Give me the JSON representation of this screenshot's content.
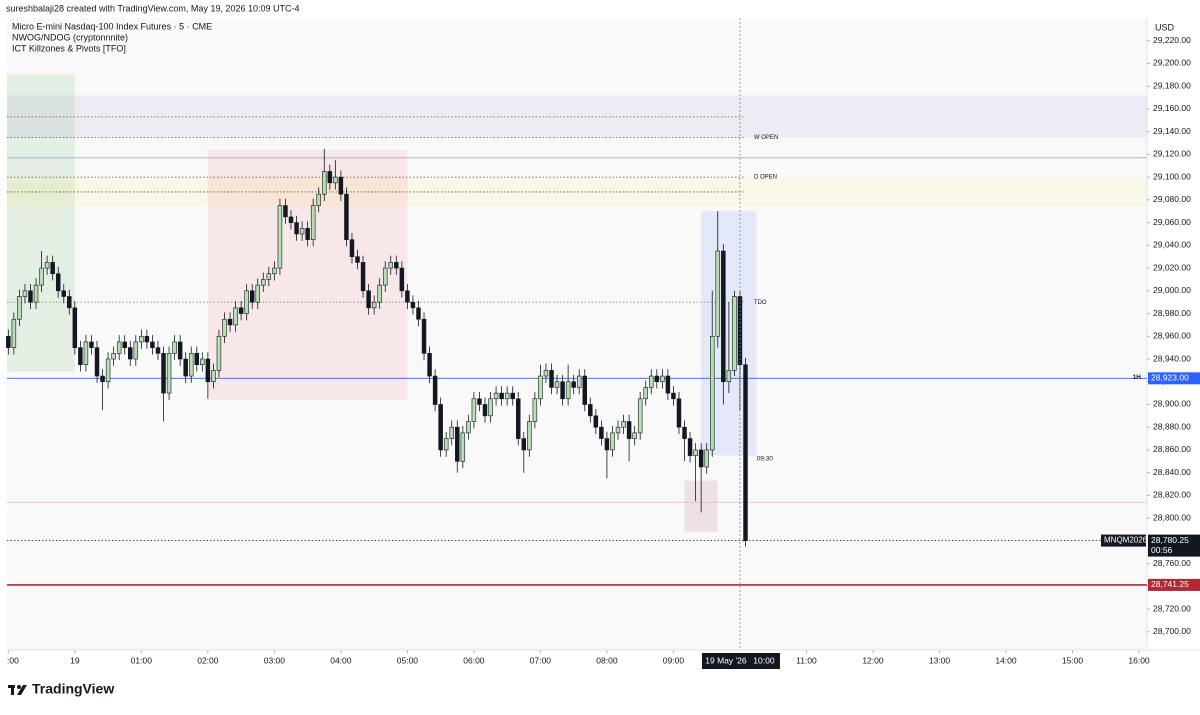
{
  "chart_data": {
    "type": "candlestick",
    "attribution": "sureshbalaji28 created with TradingView.com, May 19, 2026 10:09 UTC-4",
    "title": "Micro E-mini Nasdaq-100 Index Futures · 5 · CME",
    "indicators": [
      "NWOG/NDOG (cryptonnnite)",
      "ICT Killzones & Pivots [TFO]"
    ],
    "brand": "TradingView",
    "currency": "USD",
    "up_color": "#b7dfb2",
    "down_color": "#131722",
    "outline_color": "#131722",
    "x": [
      "2026-05-18T23:00",
      "2026-05-18T23:05",
      "2026-05-18T23:10",
      "2026-05-18T23:15",
      "2026-05-18T23:20",
      "2026-05-18T23:25",
      "2026-05-18T23:30",
      "2026-05-18T23:35",
      "2026-05-18T23:40",
      "2026-05-18T23:45",
      "2026-05-18T23:50",
      "2026-05-18T23:55",
      "2026-05-19T00:00",
      "2026-05-19T00:05",
      "2026-05-19T00:10",
      "2026-05-19T00:15",
      "2026-05-19T00:20",
      "2026-05-19T00:25",
      "2026-05-19T00:30",
      "2026-05-19T00:35",
      "2026-05-19T00:40",
      "2026-05-19T00:45",
      "2026-05-19T00:50",
      "2026-05-19T00:55",
      "2026-05-19T01:00",
      "2026-05-19T01:05",
      "2026-05-19T01:10",
      "2026-05-19T01:15",
      "2026-05-19T01:20",
      "2026-05-19T01:25",
      "2026-05-19T01:30",
      "2026-05-19T01:35",
      "2026-05-19T01:40",
      "2026-05-19T01:45",
      "2026-05-19T01:50",
      "2026-05-19T01:55",
      "2026-05-19T02:00",
      "2026-05-19T02:05",
      "2026-05-19T02:10",
      "2026-05-19T02:15",
      "2026-05-19T02:20",
      "2026-05-19T02:25",
      "2026-05-19T02:30",
      "2026-05-19T02:35",
      "2026-05-19T02:40",
      "2026-05-19T02:45",
      "2026-05-19T02:50",
      "2026-05-19T02:55",
      "2026-05-19T03:00",
      "2026-05-19T03:05",
      "2026-05-19T03:10",
      "2026-05-19T03:15",
      "2026-05-19T03:20",
      "2026-05-19T03:25",
      "2026-05-19T03:30",
      "2026-05-19T03:35",
      "2026-05-19T03:40",
      "2026-05-19T03:45",
      "2026-05-19T03:50",
      "2026-05-19T03:55",
      "2026-05-19T04:00",
      "2026-05-19T04:05",
      "2026-05-19T04:10",
      "2026-05-19T04:15",
      "2026-05-19T04:20",
      "2026-05-19T04:25",
      "2026-05-19T04:30",
      "2026-05-19T04:35",
      "2026-05-19T04:40",
      "2026-05-19T04:45",
      "2026-05-19T04:50",
      "2026-05-19T04:55",
      "2026-05-19T05:00",
      "2026-05-19T05:05",
      "2026-05-19T05:10",
      "2026-05-19T05:15",
      "2026-05-19T05:20",
      "2026-05-19T05:25",
      "2026-05-19T05:30",
      "2026-05-19T05:35",
      "2026-05-19T05:40",
      "2026-05-19T05:45",
      "2026-05-19T05:50",
      "2026-05-19T05:55",
      "2026-05-19T06:00",
      "2026-05-19T06:05",
      "2026-05-19T06:10",
      "2026-05-19T06:15",
      "2026-05-19T06:20",
      "2026-05-19T06:25",
      "2026-05-19T06:30",
      "2026-05-19T06:35",
      "2026-05-19T06:40",
      "2026-05-19T06:45",
      "2026-05-19T06:50",
      "2026-05-19T06:55",
      "2026-05-19T07:00",
      "2026-05-19T07:05",
      "2026-05-19T07:10",
      "2026-05-19T07:15",
      "2026-05-19T07:20",
      "2026-05-19T07:25",
      "2026-05-19T07:30",
      "2026-05-19T07:35",
      "2026-05-19T07:40",
      "2026-05-19T07:45",
      "2026-05-19T07:50",
      "2026-05-19T07:55",
      "2026-05-19T08:00",
      "2026-05-19T08:05",
      "2026-05-19T08:10",
      "2026-05-19T08:15",
      "2026-05-19T08:20",
      "2026-05-19T08:25",
      "2026-05-19T08:30",
      "2026-05-19T08:35",
      "2026-05-19T08:40",
      "2026-05-19T08:45",
      "2026-05-19T08:50",
      "2026-05-19T08:55",
      "2026-05-19T09:00",
      "2026-05-19T09:05",
      "2026-05-19T09:10",
      "2026-05-19T09:15",
      "2026-05-19T09:20",
      "2026-05-19T09:25",
      "2026-05-19T09:30",
      "2026-05-19T09:35",
      "2026-05-19T09:40",
      "2026-05-19T09:45",
      "2026-05-19T09:50",
      "2026-05-19T09:55",
      "2026-05-19T10:00",
      "2026-05-19T10:05"
    ],
    "open": [
      28960,
      28950,
      28975,
      28995,
      29000,
      28990,
      29005,
      29020,
      29025,
      29015,
      29000,
      28995,
      28985,
      28950,
      28935,
      28955,
      28950,
      28925,
      28920,
      28940,
      28945,
      28955,
      28950,
      28940,
      28955,
      28960,
      28955,
      28950,
      28945,
      28910,
      28945,
      28955,
      28940,
      28925,
      28945,
      28935,
      28940,
      28920,
      28930,
      28960,
      28975,
      28970,
      28985,
      28980,
      29000,
      28990,
      29005,
      29010,
      29015,
      29020,
      29075,
      29065,
      29060,
      29050,
      29055,
      29045,
      29075,
      29085,
      29105,
      29095,
      29100,
      29085,
      29045,
      29030,
      29025,
      29000,
      28985,
      28990,
      29005,
      29020,
      29025,
      29020,
      29000,
      28990,
      28985,
      28975,
      28945,
      28925,
      28900,
      28860,
      28870,
      28880,
      28850,
      28875,
      28885,
      28905,
      28900,
      28890,
      28905,
      28910,
      28905,
      28910,
      28905,
      28870,
      28860,
      28885,
      28905,
      28925,
      28930,
      28915,
      28920,
      28905,
      28920,
      28915,
      28925,
      28900,
      28890,
      28880,
      28870,
      28860,
      28875,
      28880,
      28885,
      28870,
      28875,
      28905,
      28915,
      28925,
      28920,
      28925,
      28910,
      28905,
      28880,
      28870,
      28855,
      28860,
      28845,
      28860,
      28960,
      29035,
      28920,
      28930,
      28995,
      28935
    ],
    "high": [
      28966,
      28981,
      29001,
      29006,
      29006,
      29011,
      29035,
      29031,
      29031,
      29021,
      29006,
      29001,
      28991,
      28956,
      28961,
      28961,
      28956,
      28931,
      28946,
      28951,
      28961,
      28961,
      28956,
      28961,
      28966,
      28966,
      28961,
      28956,
      28951,
      28951,
      28961,
      28961,
      28946,
      28951,
      28951,
      28946,
      28946,
      28936,
      28966,
      28981,
      28981,
      28991,
      28991,
      29006,
      29006,
      29011,
      29016,
      29021,
      29026,
      29081,
      29081,
      29071,
      29066,
      29061,
      29061,
      29081,
      29091,
      29125,
      29111,
      29115,
      29106,
      29091,
      29051,
      29036,
      29031,
      29006,
      28996,
      29011,
      29026,
      29031,
      29031,
      29026,
      29006,
      28996,
      28991,
      28981,
      28951,
      28931,
      28906,
      28876,
      28886,
      28886,
      28881,
      28891,
      28911,
      28911,
      28906,
      28911,
      28916,
      28916,
      28916,
      28916,
      28911,
      28876,
      28891,
      28911,
      28935,
      28936,
      28936,
      28926,
      28926,
      28935,
      28926,
      28931,
      28931,
      28906,
      28896,
      28886,
      28876,
      28881,
      28886,
      28891,
      28891,
      28881,
      28911,
      28921,
      28931,
      28931,
      28931,
      28931,
      28916,
      28911,
      28886,
      28876,
      28866,
      28866,
      28866,
      29000,
      29070,
      29041,
      28990,
      29000,
      29000,
      28941
    ],
    "low": [
      28944,
      28944,
      28969,
      28989,
      28984,
      28984,
      28999,
      29014,
      29009,
      28994,
      28989,
      28979,
      28944,
      28929,
      28929,
      28944,
      28919,
      28895,
      28914,
      28934,
      28939,
      28944,
      28934,
      28934,
      28949,
      28949,
      28944,
      28939,
      28885,
      28904,
      28939,
      28934,
      28919,
      28919,
      28929,
      28929,
      28905,
      28914,
      28924,
      28954,
      28964,
      28964,
      28974,
      28974,
      28984,
      28984,
      28999,
      29004,
      29009,
      29014,
      29059,
      29054,
      29044,
      29044,
      29039,
      29039,
      29069,
      29079,
      29089,
      29089,
      29079,
      29039,
      29024,
      29019,
      28994,
      28979,
      28979,
      28984,
      28999,
      29014,
      29014,
      28994,
      28984,
      28979,
      28969,
      28939,
      28919,
      28894,
      28854,
      28854,
      28864,
      28840,
      28844,
      28869,
      28879,
      28894,
      28884,
      28884,
      28899,
      28899,
      28899,
      28899,
      28864,
      28840,
      28854,
      28879,
      28899,
      28919,
      28909,
      28909,
      28899,
      28899,
      28909,
      28909,
      28894,
      28884,
      28874,
      28864,
      28835,
      28854,
      28869,
      28874,
      28850,
      28864,
      28869,
      28899,
      28909,
      28914,
      28914,
      28904,
      28899,
      28874,
      28850,
      28849,
      28815,
      28805,
      28839,
      28854,
      28950,
      28900,
      28910,
      28925,
      28895,
      28775
    ],
    "close": [
      28950,
      28975,
      28995,
      29000,
      28990,
      29005,
      29020,
      29025,
      29015,
      29000,
      28995,
      28985,
      28950,
      28935,
      28955,
      28950,
      28925,
      28920,
      28940,
      28945,
      28955,
      28950,
      28940,
      28955,
      28960,
      28955,
      28950,
      28945,
      28910,
      28945,
      28955,
      28940,
      28925,
      28945,
      28935,
      28940,
      28920,
      28930,
      28960,
      28975,
      28970,
      28985,
      28980,
      29000,
      28990,
      29005,
      29010,
      29015,
      29020,
      29075,
      29065,
      29060,
      29050,
      29055,
      29045,
      29075,
      29085,
      29105,
      29095,
      29100,
      29085,
      29045,
      29030,
      29025,
      29000,
      28985,
      28990,
      29005,
      29020,
      29025,
      29020,
      29000,
      28990,
      28985,
      28975,
      28945,
      28925,
      28900,
      28860,
      28870,
      28880,
      28850,
      28875,
      28885,
      28905,
      28900,
      28890,
      28905,
      28910,
      28905,
      28910,
      28905,
      28870,
      28860,
      28885,
      28905,
      28925,
      28930,
      28915,
      28920,
      28905,
      28920,
      28915,
      28925,
      28900,
      28890,
      28880,
      28870,
      28860,
      28875,
      28880,
      28885,
      28870,
      28875,
      28905,
      28915,
      28925,
      28920,
      28925,
      28910,
      28905,
      28880,
      28870,
      28855,
      28860,
      28845,
      28860,
      28960,
      29035,
      28920,
      28930,
      28995,
      28935,
      28780.25
    ],
    "xlim": [
      "2026-05-18T22:58:48",
      "2026-05-19T16:07:12"
    ],
    "xticks": [
      {
        "value": "2026-05-18T23:00",
        "label": ":00"
      },
      {
        "value": "2026-05-19T00:00",
        "label": "19"
      },
      {
        "value": "2026-05-19T01:00",
        "label": "01:00"
      },
      {
        "value": "2026-05-19T02:00",
        "label": "02:00"
      },
      {
        "value": "2026-05-19T03:00",
        "label": "03:00"
      },
      {
        "value": "2026-05-19T04:00",
        "label": "04:00"
      },
      {
        "value": "2026-05-19T05:00",
        "label": "05:00"
      },
      {
        "value": "2026-05-19T06:00",
        "label": "06:00"
      },
      {
        "value": "2026-05-19T07:00",
        "label": "07:00"
      },
      {
        "value": "2026-05-19T08:00",
        "label": "08:00"
      },
      {
        "value": "2026-05-19T09:00",
        "label": "09:00"
      },
      {
        "value": "2026-05-19T11:00",
        "label": "11:00"
      },
      {
        "value": "2026-05-19T12:00",
        "label": "12:00"
      },
      {
        "value": "2026-05-19T13:00",
        "label": "13:00"
      },
      {
        "value": "2026-05-19T14:00",
        "label": "14:00"
      },
      {
        "value": "2026-05-19T15:00",
        "label": "15:00"
      },
      {
        "value": "2026-05-19T16:00",
        "label": "16:00"
      }
    ],
    "crosshair": {
      "value": "2026-05-19T10:00",
      "date": "19 May '26",
      "time": "10:00"
    },
    "ylim": [
      28684,
      29240
    ],
    "yticks": [
      {
        "value": 28700,
        "label": "28,700.00"
      },
      {
        "value": 28720,
        "label": "28,720.00"
      },
      {
        "value": 28740,
        "label": "28,740.00"
      },
      {
        "value": 28760,
        "label": "28,760.00"
      },
      {
        "value": 28780,
        "label": "28,780.00"
      },
      {
        "value": 28800,
        "label": "28,800.00"
      },
      {
        "value": 28820,
        "label": "28,820.00"
      },
      {
        "value": 28840,
        "label": "28,840.00"
      },
      {
        "value": 28860,
        "label": "28,860.00"
      },
      {
        "value": 28880,
        "label": "28,880.00"
      },
      {
        "value": 28900,
        "label": "28,900.00"
      },
      {
        "value": 28920,
        "label": "28,920.00"
      },
      {
        "value": 28940,
        "label": "28,940.00"
      },
      {
        "value": 28960,
        "label": "28,960.00"
      },
      {
        "value": 28980,
        "label": "28,980.00"
      },
      {
        "value": 29000,
        "label": "29,000.00"
      },
      {
        "value": 29020,
        "label": "29,020.00"
      },
      {
        "value": 29040,
        "label": "29,040.00"
      },
      {
        "value": 29060,
        "label": "29,060.00"
      },
      {
        "value": 29080,
        "label": "29,080.00"
      },
      {
        "value": 29100,
        "label": "29,100.00"
      },
      {
        "value": 29120,
        "label": "29,120.00"
      },
      {
        "value": 29140,
        "label": "29,140.00"
      },
      {
        "value": 29160,
        "label": "29,160.00"
      },
      {
        "value": 29180,
        "label": "29,180.00"
      },
      {
        "value": 29200,
        "label": "29,200.00"
      },
      {
        "value": 29220,
        "label": "29,220.00"
      }
    ],
    "zones": [
      {
        "x": [
          "2026-05-18T22:58:48",
          "2026-05-19T00:00"
        ],
        "y": [
          28929,
          29190
        ],
        "color": "rgba(76,175,80,0.13)"
      },
      {
        "y": [
          29135,
          29172
        ],
        "color": "rgba(149,117,205,0.10)"
      },
      {
        "y": [
          29075,
          29100
        ],
        "color": "rgba(255,235,59,0.10)"
      },
      {
        "x": [
          "2026-05-19T02:00",
          "2026-05-19T05:00"
        ],
        "y": [
          28904,
          29124
        ],
        "color": "rgba(242,54,69,0.09)"
      },
      {
        "x": [
          "2026-05-19T09:25",
          "2026-05-19T10:15"
        ],
        "y": [
          28855,
          29070
        ],
        "color": "rgba(41,98,255,0.10)",
        "label": "09:30"
      },
      {
        "x": [
          "2026-05-19T09:10",
          "2026-05-19T09:40"
        ],
        "y": [
          28788,
          28833
        ],
        "color": "rgba(136,14,79,0.10)"
      }
    ],
    "levels": [
      {
        "value": 29153,
        "style": "dotted",
        "color": "#555555"
      },
      {
        "name": "W OPEN",
        "value": 29135,
        "style": "dotted",
        "color": "#555555"
      },
      {
        "value": 29117,
        "style": "solid",
        "color": "#9fa8da"
      },
      {
        "name": "D OPEN",
        "value": 29100,
        "style": "dotted",
        "color": "#555555"
      },
      {
        "value": 29087,
        "style": "dotted",
        "color": "#555555"
      },
      {
        "name": "TDO",
        "value": 28990,
        "style": "dotted",
        "color": "#888888"
      },
      {
        "name": "1H",
        "value": 28923,
        "label": "28,923.00",
        "style": "solid",
        "color": "#2962ff"
      },
      {
        "value": 28814,
        "style": "solid",
        "color": "#e6b8bd"
      },
      {
        "value": 28741.25,
        "label": "28,741.25",
        "style": "solid",
        "color": "#b22833"
      }
    ],
    "last_price": {
      "symbol": "MNQM2026",
      "value": 28780.25,
      "label": "28,780.25",
      "countdown": "00:56"
    }
  }
}
